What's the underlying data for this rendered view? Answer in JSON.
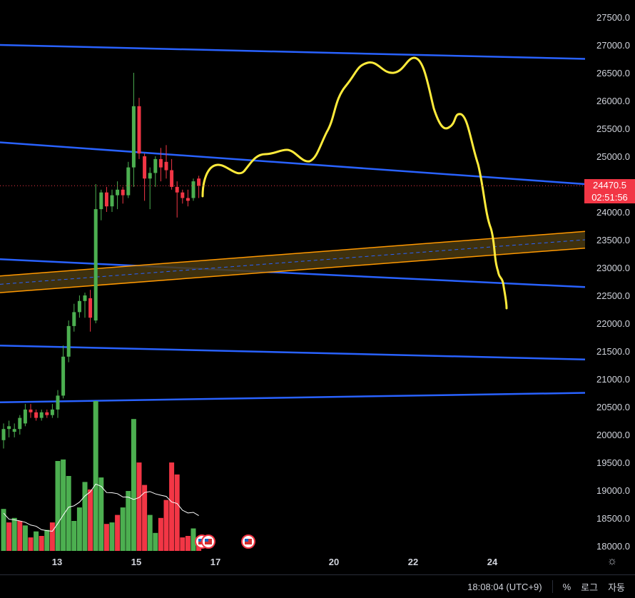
{
  "chart_data": {
    "type": "candlestick",
    "y_axis": {
      "min": 17850,
      "max": 27650,
      "ticks": [
        "27500.0",
        "27000.0",
        "26500.0",
        "26000.0",
        "25500.0",
        "25000.0",
        "24500.0",
        "24000.0",
        "23500.0",
        "23000.0",
        "22500.0",
        "22000.0",
        "21500.0",
        "21000.0",
        "20500.0",
        "20000.0",
        "19500.0",
        "19000.0",
        "18500.0",
        "18000.0"
      ]
    },
    "x_axis": {
      "ticks": [
        {
          "label": "13",
          "date": "13"
        },
        {
          "label": "15",
          "date": "15"
        },
        {
          "label": "17",
          "date": "17"
        },
        {
          "label": "20",
          "date": "20"
        },
        {
          "label": "22",
          "date": "22"
        },
        {
          "label": "24",
          "date": "24"
        }
      ]
    },
    "current_price": {
      "value": "24470.5",
      "countdown": "02:51:56",
      "level": 24470.5
    },
    "candles": [
      {
        "o": 19900,
        "h": 20200,
        "l": 19750,
        "c": 20100
      },
      {
        "o": 20100,
        "h": 20250,
        "l": 19950,
        "c": 20150
      },
      {
        "o": 20050,
        "h": 20200,
        "l": 19950,
        "c": 20100
      },
      {
        "o": 20100,
        "h": 20350,
        "l": 20000,
        "c": 20300
      },
      {
        "o": 20200,
        "h": 20550,
        "l": 20150,
        "c": 20450
      },
      {
        "o": 20450,
        "h": 20550,
        "l": 20300,
        "c": 20400
      },
      {
        "o": 20400,
        "h": 20450,
        "l": 20250,
        "c": 20300
      },
      {
        "o": 20300,
        "h": 20450,
        "l": 20250,
        "c": 20400
      },
      {
        "o": 20400,
        "h": 20450,
        "l": 20300,
        "c": 20350
      },
      {
        "o": 20350,
        "h": 20550,
        "l": 20300,
        "c": 20450
      },
      {
        "o": 20450,
        "h": 20800,
        "l": 20300,
        "c": 20700
      },
      {
        "o": 20700,
        "h": 21600,
        "l": 20650,
        "c": 21400
      },
      {
        "o": 21400,
        "h": 22050,
        "l": 21300,
        "c": 21950
      },
      {
        "o": 21950,
        "h": 22350,
        "l": 21850,
        "c": 22200
      },
      {
        "o": 22200,
        "h": 22500,
        "l": 22100,
        "c": 22400
      },
      {
        "o": 22400,
        "h": 22550,
        "l": 22100,
        "c": 22500
      },
      {
        "o": 22450,
        "h": 22600,
        "l": 21850,
        "c": 22100
      },
      {
        "o": 22050,
        "h": 24500,
        "l": 22000,
        "c": 24050
      },
      {
        "o": 24050,
        "h": 24400,
        "l": 23850,
        "c": 24350
      },
      {
        "o": 24350,
        "h": 24450,
        "l": 24000,
        "c": 24100
      },
      {
        "o": 24100,
        "h": 24400,
        "l": 24000,
        "c": 24300
      },
      {
        "o": 24300,
        "h": 24550,
        "l": 24050,
        "c": 24400
      },
      {
        "o": 24400,
        "h": 24450,
        "l": 24150,
        "c": 24300
      },
      {
        "o": 24300,
        "h": 24900,
        "l": 24250,
        "c": 24800
      },
      {
        "o": 24800,
        "h": 26500,
        "l": 24450,
        "c": 25900
      },
      {
        "o": 25900,
        "h": 26050,
        "l": 24950,
        "c": 25050
      },
      {
        "o": 25000,
        "h": 25050,
        "l": 24200,
        "c": 24600
      },
      {
        "o": 24600,
        "h": 24800,
        "l": 24050,
        "c": 24700
      },
      {
        "o": 24700,
        "h": 25000,
        "l": 24450,
        "c": 24950
      },
      {
        "o": 24950,
        "h": 25150,
        "l": 24550,
        "c": 24800
      },
      {
        "o": 24900,
        "h": 25200,
        "l": 24600,
        "c": 24750
      },
      {
        "o": 24750,
        "h": 24950,
        "l": 24400,
        "c": 24450
      },
      {
        "o": 24450,
        "h": 24550,
        "l": 23900,
        "c": 24350
      },
      {
        "o": 24350,
        "h": 24400,
        "l": 24150,
        "c": 24250
      },
      {
        "o": 24250,
        "h": 24400,
        "l": 24100,
        "c": 24200
      },
      {
        "o": 24250,
        "h": 24600,
        "l": 24200,
        "c": 24550
      },
      {
        "o": 24600,
        "h": 24650,
        "l": 24250,
        "c": 24470.5
      }
    ],
    "volume": [
      {
        "v": 0.28,
        "up": true
      },
      {
        "v": 0.19,
        "up": false
      },
      {
        "v": 0.22,
        "up": true
      },
      {
        "v": 0.2,
        "up": false
      },
      {
        "v": 0.17,
        "up": true
      },
      {
        "v": 0.09,
        "up": false
      },
      {
        "v": 0.13,
        "up": true
      },
      {
        "v": 0.1,
        "up": false
      },
      {
        "v": 0.14,
        "up": true
      },
      {
        "v": 0.19,
        "up": false
      },
      {
        "v": 0.6,
        "up": true
      },
      {
        "v": 0.61,
        "up": true
      },
      {
        "v": 0.5,
        "up": true
      },
      {
        "v": 0.2,
        "up": true
      },
      {
        "v": 0.29,
        "up": true
      },
      {
        "v": 0.46,
        "up": true
      },
      {
        "v": 0.41,
        "up": false
      },
      {
        "v": 1.0,
        "up": true
      },
      {
        "v": 0.49,
        "up": true
      },
      {
        "v": 0.18,
        "up": false
      },
      {
        "v": 0.19,
        "up": true
      },
      {
        "v": 0.24,
        "up": false
      },
      {
        "v": 0.29,
        "up": true
      },
      {
        "v": 0.4,
        "up": true
      },
      {
        "v": 0.88,
        "up": true
      },
      {
        "v": 0.59,
        "up": false
      },
      {
        "v": 0.44,
        "up": false
      },
      {
        "v": 0.24,
        "up": true
      },
      {
        "v": 0.12,
        "up": true
      },
      {
        "v": 0.22,
        "up": false
      },
      {
        "v": 0.34,
        "up": false
      },
      {
        "v": 0.59,
        "up": false
      },
      {
        "v": 0.51,
        "up": false
      },
      {
        "v": 0.09,
        "up": false
      },
      {
        "v": 0.1,
        "up": false
      },
      {
        "v": 0.15,
        "up": true
      },
      {
        "v": 0.05,
        "up": false
      }
    ],
    "trend_lines": [
      {
        "name": "upper-channel-line",
        "from": [
          0,
          27000
        ],
        "to": [
          1,
          26750
        ]
      },
      {
        "name": "middle-channel-line",
        "from": [
          0,
          25250
        ],
        "to": [
          1,
          24500
        ]
      },
      {
        "name": "lower-channel-line",
        "from": [
          0,
          23150
        ],
        "to": [
          1,
          22650
        ]
      },
      {
        "name": "support-line-a",
        "from": [
          0,
          21600
        ],
        "to": [
          1,
          21350
        ]
      },
      {
        "name": "support-line-b",
        "from": [
          0,
          20580
        ],
        "to": [
          1,
          20750
        ]
      }
    ],
    "orange_band": {
      "lower": [
        [
          0,
          22550
        ],
        [
          1,
          23350
        ]
      ],
      "upper": [
        [
          0,
          22850
        ],
        [
          1,
          23650
        ]
      ],
      "mid": [
        [
          0,
          22700
        ],
        [
          1,
          23500
        ]
      ]
    },
    "colors": {
      "up": "#4caf50",
      "down": "#f23645",
      "channel": "#2962ff",
      "band": "#ff9800",
      "band_fill": "#4a3a10",
      "forecast": "#ffeb3b",
      "ma": "#ffffff"
    }
  },
  "status_bar": {
    "time": "18:08:04 (UTC+9)",
    "percent": "%",
    "log": "로그",
    "auto": "자동"
  },
  "icons": {
    "settings": "gear-icon",
    "event_flag": "us-flag-icon"
  }
}
